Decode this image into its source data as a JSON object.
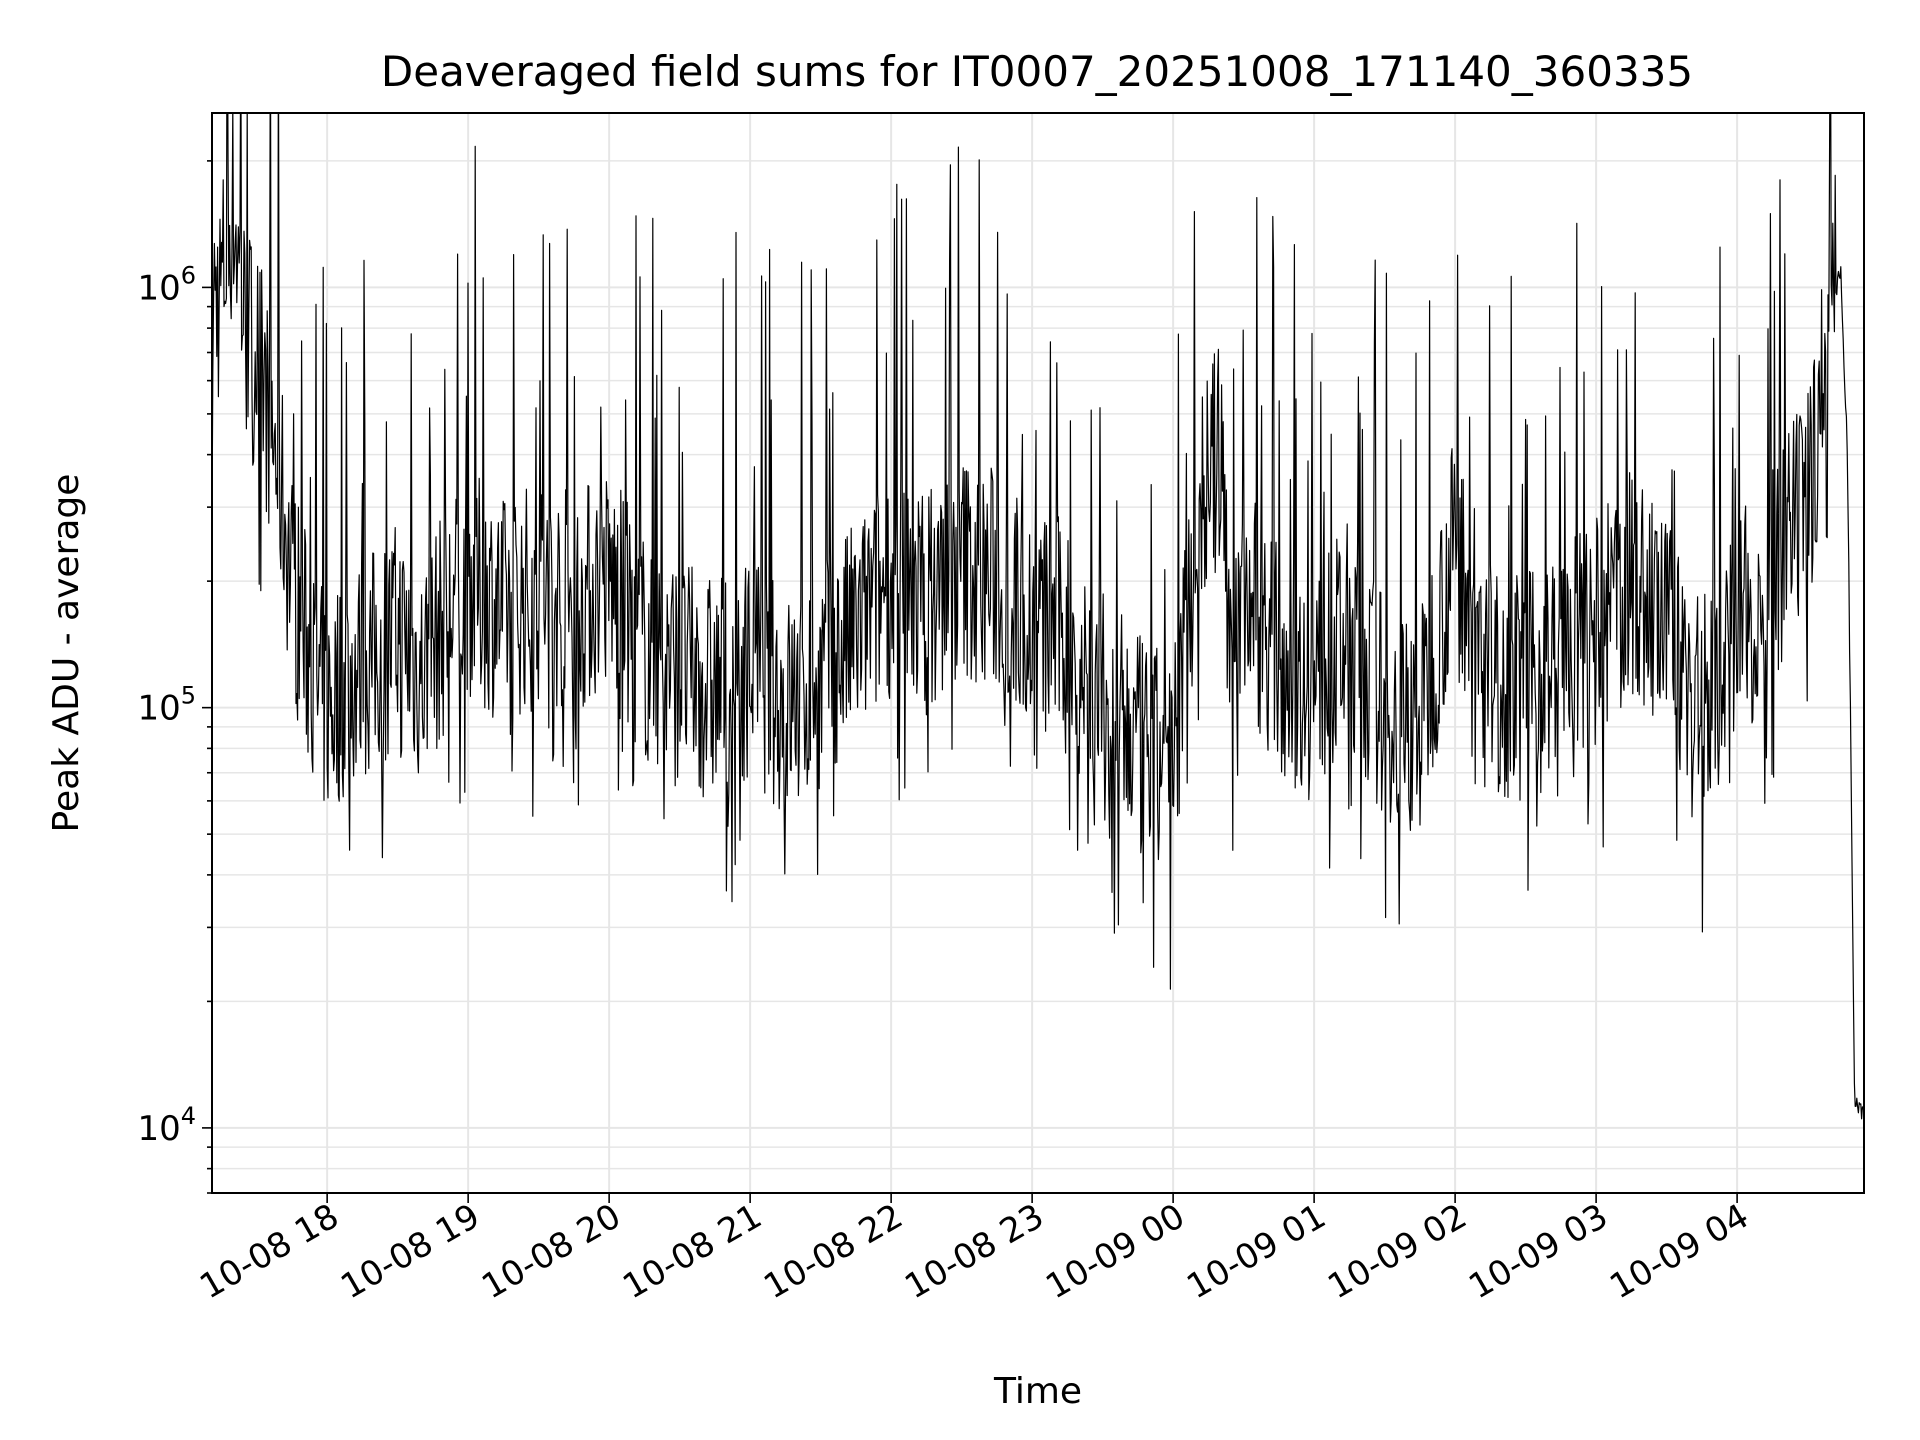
{
  "chart_data": {
    "type": "line",
    "title": "Deaveraged field sums for IT0007_20251008_171140_360335",
    "xlabel": "Time",
    "ylabel": "Peak ADU - average",
    "yscale": "log",
    "xlim": [
      "2025-10-08 17:11",
      "2025-10-09 04:54"
    ],
    "ylim": [
      7000,
      2600000
    ],
    "grid": true,
    "line_color": "#000000",
    "x_ticks": [
      {
        "t": "2025-10-08 18:00",
        "label": "10-08 18"
      },
      {
        "t": "2025-10-08 19:00",
        "label": "10-08 19"
      },
      {
        "t": "2025-10-08 20:00",
        "label": "10-08 20"
      },
      {
        "t": "2025-10-08 21:00",
        "label": "10-08 21"
      },
      {
        "t": "2025-10-08 22:00",
        "label": "10-08 22"
      },
      {
        "t": "2025-10-08 23:00",
        "label": "10-08 23"
      },
      {
        "t": "2025-10-09 00:00",
        "label": "10-09 00"
      },
      {
        "t": "2025-10-09 01:00",
        "label": "10-09 01"
      },
      {
        "t": "2025-10-09 02:00",
        "label": "10-09 02"
      },
      {
        "t": "2025-10-09 03:00",
        "label": "10-09 03"
      },
      {
        "t": "2025-10-09 04:00",
        "label": "10-09 04"
      }
    ],
    "y_ticks": [
      {
        "value": 10000,
        "base": "10",
        "exp": "4"
      },
      {
        "value": 100000,
        "base": "10",
        "exp": "5"
      },
      {
        "value": 1000000,
        "base": "10",
        "exp": "6"
      }
    ],
    "series": [
      {
        "x": [
          "2025-10-08 17:11",
          "2025-10-08 17:15",
          "2025-10-08 17:20",
          "2025-10-08 17:25",
          "2025-10-08 17:30",
          "2025-10-08 17:35",
          "2025-10-08 17:40",
          "2025-10-08 17:45",
          "2025-10-08 17:50",
          "2025-10-08 17:55",
          "2025-10-08 18:00",
          "2025-10-08 18:10",
          "2025-10-08 18:20",
          "2025-10-08 18:30",
          "2025-10-08 18:40",
          "2025-10-08 18:50",
          "2025-10-08 19:00",
          "2025-10-08 19:15",
          "2025-10-08 19:30",
          "2025-10-08 19:45",
          "2025-10-08 20:00",
          "2025-10-08 20:15",
          "2025-10-08 20:30",
          "2025-10-08 20:45",
          "2025-10-08 21:00",
          "2025-10-08 21:15",
          "2025-10-08 21:30",
          "2025-10-08 21:45",
          "2025-10-08 22:00",
          "2025-10-08 22:15",
          "2025-10-08 22:30",
          "2025-10-08 22:45",
          "2025-10-08 23:00",
          "2025-10-08 23:15",
          "2025-10-08 23:30",
          "2025-10-08 23:45",
          "2025-10-09 00:00",
          "2025-10-09 00:10",
          "2025-10-09 00:20",
          "2025-10-09 00:25",
          "2025-10-09 00:30",
          "2025-10-09 00:45",
          "2025-10-09 01:00",
          "2025-10-09 01:15",
          "2025-10-09 01:30",
          "2025-10-09 01:45",
          "2025-10-09 02:00",
          "2025-10-09 02:15",
          "2025-10-09 02:30",
          "2025-10-09 02:45",
          "2025-10-09 03:00",
          "2025-10-09 03:15",
          "2025-10-09 03:30",
          "2025-10-09 03:45",
          "2025-10-09 04:00",
          "2025-10-09 04:15",
          "2025-10-09 04:30",
          "2025-10-09 04:40",
          "2025-10-09 04:44",
          "2025-10-09 04:47",
          "2025-10-09 04:50",
          "2025-10-09 04:54"
        ],
        "y": [
          900000,
          1000000,
          1600000,
          800000,
          700000,
          500000,
          350000,
          200000,
          150000,
          110000,
          100000,
          120000,
          130000,
          150000,
          120000,
          160000,
          200000,
          170000,
          190000,
          180000,
          200000,
          140000,
          120000,
          110000,
          130000,
          100000,
          120000,
          150000,
          200000,
          180000,
          220000,
          200000,
          160000,
          150000,
          100000,
          80000,
          70000,
          300000,
          400000,
          150000,
          200000,
          130000,
          110000,
          150000,
          100000,
          90000,
          250000,
          120000,
          110000,
          130000,
          150000,
          200000,
          150000,
          100000,
          150000,
          200000,
          300000,
          900000,
          1100000,
          400000,
          12000,
          11000
        ]
      }
    ]
  }
}
